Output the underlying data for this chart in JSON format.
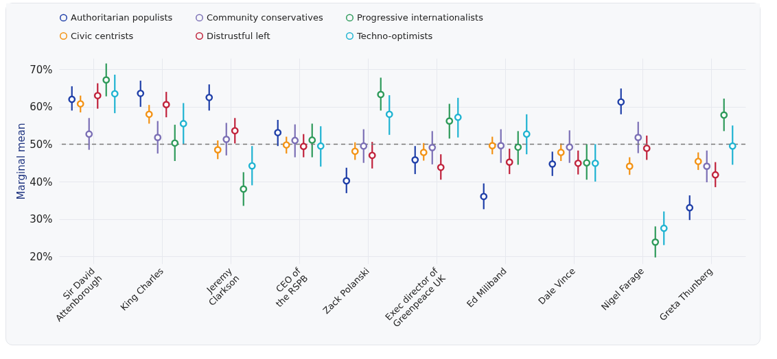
{
  "chart_data": {
    "type": "scatter",
    "ylabel": "Marginal mean",
    "categories": [
      "Sir David Attenborough",
      "King Charles",
      "Jeremy Clarkson",
      "CEO of the RSPB",
      "Zack Polanski",
      "Exec director of Greenpeace UK",
      "Ed Miliband",
      "Dale Vince",
      "Nigel Farage",
      "Greta Thunberg"
    ],
    "series": [
      {
        "name": "Authoritarian populists",
        "color": "#1f3fa8",
        "values": [
          62,
          63.6,
          62.5,
          53.1,
          40.2,
          45.8,
          36,
          44.7,
          61.3,
          33
        ],
        "errors": [
          [
            59,
            65.5
          ],
          [
            60,
            67
          ],
          [
            59,
            66
          ],
          [
            49.5,
            56.5
          ],
          [
            36.9,
            43.7
          ],
          [
            42,
            49.5
          ],
          [
            32.6,
            39.5
          ],
          [
            41.5,
            48
          ],
          [
            58,
            64.9
          ],
          [
            29.7,
            36.3
          ]
        ]
      },
      {
        "name": "Civic centrists",
        "color": "#f39214",
        "values": [
          60.8,
          58,
          48.5,
          49.8,
          48.1,
          47.8,
          49.6,
          47.8,
          44.1,
          45.4
        ],
        "errors": [
          [
            58.5,
            63
          ],
          [
            55.5,
            60.5
          ],
          [
            46,
            51
          ],
          [
            47.5,
            52
          ],
          [
            45.8,
            50.5
          ],
          [
            45.6,
            50.3
          ],
          [
            47.3,
            52
          ],
          [
            45.5,
            50.2
          ],
          [
            41.8,
            46.5
          ],
          [
            43.1,
            47.8
          ]
        ]
      },
      {
        "name": "Community conservatives",
        "color": "#7b6fb5",
        "values": [
          52.7,
          51.8,
          51.3,
          51,
          49.5,
          49.1,
          49.6,
          49.2,
          51.8,
          44.1
        ],
        "errors": [
          [
            48.5,
            57
          ],
          [
            47.5,
            56.2
          ],
          [
            47,
            55.7
          ],
          [
            46.5,
            55.3
          ],
          [
            45,
            54
          ],
          [
            44.6,
            53.5
          ],
          [
            45,
            54
          ],
          [
            45,
            53.7
          ],
          [
            47.6,
            56
          ],
          [
            39.8,
            48.3
          ]
        ]
      },
      {
        "name": "Distrustful left",
        "color": "#c0223b",
        "values": [
          63,
          60.6,
          53.6,
          49.4,
          47,
          43.8,
          45.2,
          44.9,
          48.9,
          41.8
        ],
        "errors": [
          [
            59.5,
            66.3
          ],
          [
            57.2,
            64
          ],
          [
            50.2,
            57
          ],
          [
            46.5,
            52.7
          ],
          [
            43.5,
            50.6
          ],
          [
            40.5,
            47.3
          ],
          [
            42,
            48.8
          ],
          [
            41.9,
            48.3
          ],
          [
            45.8,
            52.3
          ],
          [
            38.5,
            45.2
          ]
        ]
      },
      {
        "name": "Progressive internationalists",
        "color": "#2e9a5a",
        "values": [
          67.2,
          50.3,
          38,
          51.1,
          63.3,
          56.2,
          49.2,
          45,
          23.8,
          57.8
        ],
        "errors": [
          [
            62.8,
            71.6
          ],
          [
            45.5,
            55.2
          ],
          [
            33.5,
            42.5
          ],
          [
            46.5,
            55.5
          ],
          [
            59,
            67.8
          ],
          [
            51.5,
            60.8
          ],
          [
            44.5,
            53.5
          ],
          [
            40.5,
            50
          ],
          [
            19.7,
            28
          ],
          [
            53.5,
            62.2
          ]
        ]
      },
      {
        "name": "Techno-optimists",
        "color": "#1fb3d1",
        "values": [
          63.5,
          55.5,
          44.2,
          49.5,
          58,
          57.2,
          52.7,
          44.9,
          27.5,
          49.5
        ],
        "errors": [
          [
            58.3,
            68.6
          ],
          [
            50,
            61
          ],
          [
            39,
            49.5
          ],
          [
            44,
            54.8
          ],
          [
            52.5,
            63.1
          ],
          [
            51.8,
            62.4
          ],
          [
            47.3,
            58
          ],
          [
            40,
            50
          ],
          [
            23,
            32
          ],
          [
            44.5,
            55
          ]
        ]
      }
    ],
    "ylim": [
      18,
      73
    ],
    "yticks": [
      {
        "value": 20,
        "label": "20%"
      },
      {
        "value": 30,
        "label": "30%"
      },
      {
        "value": 40,
        "label": "40%"
      },
      {
        "value": 50,
        "label": "50%"
      },
      {
        "value": 60,
        "label": "60%"
      },
      {
        "value": 70,
        "label": "70%"
      }
    ],
    "ref_lines": [
      {
        "axis": "y",
        "value": 50,
        "color": "#777777",
        "line_style": "dashed"
      }
    ],
    "grid": true,
    "legend": "top",
    "marker": "circle"
  }
}
